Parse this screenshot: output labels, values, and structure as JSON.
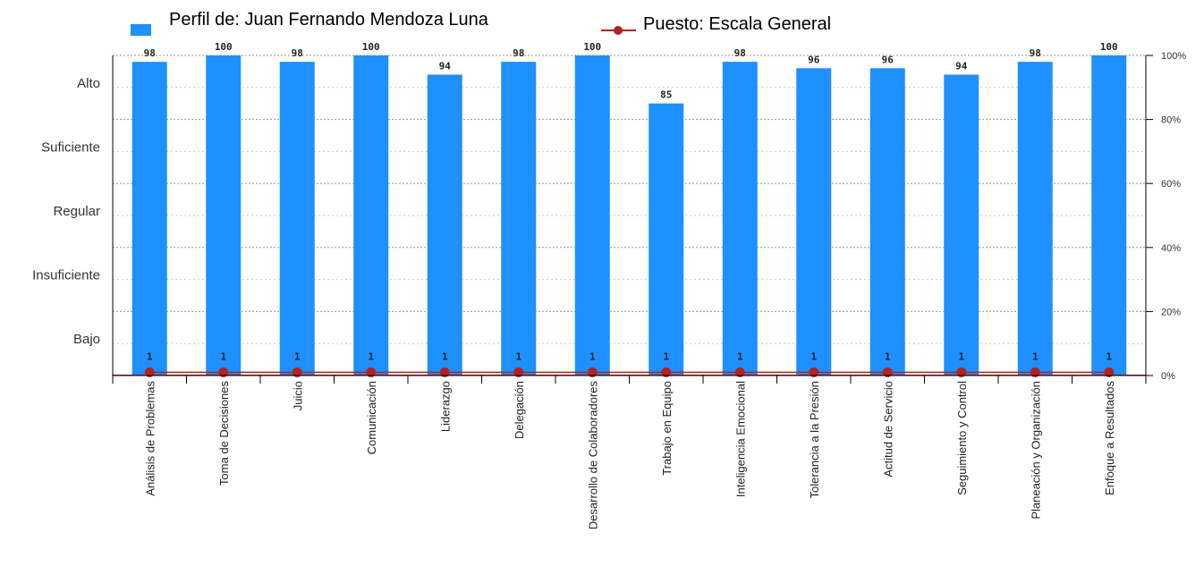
{
  "chart_data": {
    "type": "bar",
    "categories": [
      "Análisis de Problemas",
      "Toma de Decisiones",
      "Juicio",
      "Comunicación",
      "Liderazgo",
      "Delegación",
      "Desarrollo de Colaboradores",
      "Trabajo en Equipo",
      "Inteligencia Emocional",
      "Tolerancia a la Presión",
      "Actitud de Servicio",
      "Seguimiento y Control",
      "Planeación y Organización",
      "Enfoque a Resultados"
    ],
    "series": [
      {
        "name": "Perfil de: Juan Fernando Mendoza Luna",
        "type": "bar",
        "color": "#1e90ff",
        "values": [
          98,
          100,
          98,
          100,
          94,
          98,
          100,
          85,
          98,
          96,
          96,
          94,
          98,
          100
        ]
      },
      {
        "name": "Puesto: Escala General",
        "type": "line",
        "color": "#b22222",
        "values": [
          1,
          1,
          1,
          1,
          1,
          1,
          1,
          1,
          1,
          1,
          1,
          1,
          1,
          1
        ]
      }
    ],
    "ylim": [
      0,
      100
    ],
    "right_axis_ticks": [
      "0%",
      "20%",
      "40%",
      "60%",
      "80%",
      "100%"
    ],
    "left_axis_labels": [
      "Bajo",
      "Insuficiente",
      "Regular",
      "Suficiente",
      "Alto"
    ],
    "grid": true,
    "legend_position": "top"
  }
}
